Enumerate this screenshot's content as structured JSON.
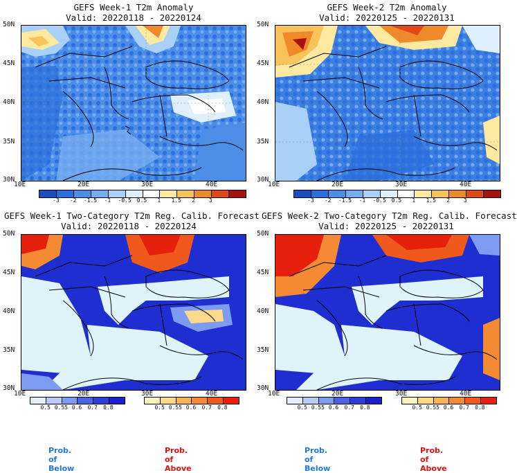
{
  "panels": [
    {
      "title": "GEFS Week-1 T2m Anomaly",
      "valid": "Valid: 20220118 - 20220124"
    },
    {
      "title": "GEFS Week-2 T2m Anomaly",
      "valid": "Valid: 20220125 - 20220131"
    },
    {
      "title": "GEFS Week-1 Two-Category T2m Reg. Calib. Forecast",
      "valid": "Valid: 20220118 - 20220124"
    },
    {
      "title": "GEFS Week-2 Two-Category T2m Reg. Calib. Forecast",
      "valid": "Valid: 20220125 - 20220131"
    }
  ],
  "lat_labels": [
    "50N",
    "45N",
    "40N",
    "35N",
    "30N"
  ],
  "lon_labels": [
    "10E",
    "20E",
    "30E",
    "40E"
  ],
  "anomaly_scale": {
    "ticks": [
      "-3",
      "-2",
      "-1.5",
      "-1",
      "-0.5",
      "0.5",
      "1",
      "1.5",
      "2",
      "3"
    ],
    "colors": [
      "#1a4fc4",
      "#2c6fdc",
      "#4b8ee8",
      "#77adf0",
      "#a9d0f7",
      "#dff0fc",
      "#ffffff",
      "#fde9a0",
      "#f8c35a",
      "#ef8a2b",
      "#df4818",
      "#a80f0f"
    ]
  },
  "prob_below": {
    "ticks": [
      "0.5",
      "0.55",
      "0.6",
      "0.7",
      "0.8"
    ],
    "colors": [
      "#dff0fc",
      "#b7cdf8",
      "#7d9bf0",
      "#4a63e6",
      "#2b3fd8",
      "#1a1fcc"
    ],
    "label": "Prob. of Below"
  },
  "prob_above": {
    "ticks": [
      "0.5",
      "0.55",
      "0.6",
      "0.7",
      "0.8"
    ],
    "colors": [
      "#fff2bb",
      "#fdd98a",
      "#f9b256",
      "#f58a34",
      "#ef5a1c",
      "#e6200c"
    ],
    "label": "Prob. of Above"
  },
  "colors": {
    "sea": "#dff3fb",
    "land_blue": "#1f2ed0",
    "coast": "#000000"
  }
}
